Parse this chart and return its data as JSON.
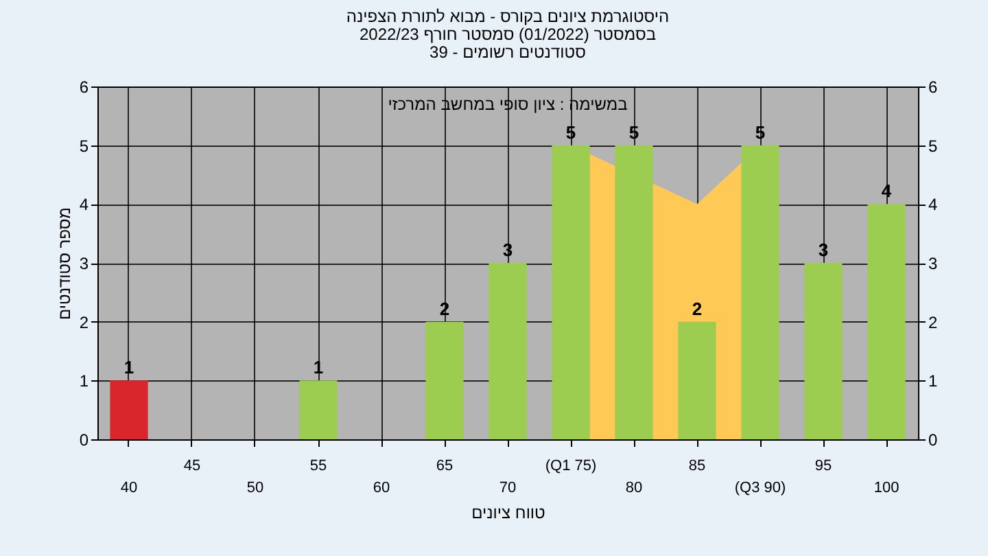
{
  "chart_data": {
    "type": "bar",
    "title": [
      "היסטוגרמת ציונים בקורס - מבוא לתורת הצפינה",
      "בסמסטר  (01/2022)  סמסטר חורף 2022/23",
      "סטודנטים רשומים - 39"
    ],
    "xlabel": "טווח ציונים",
    "ylabel": "מספר סטודנטים",
    "annotations": [
      "במשימה : ציון סופי במחשב המרכזי"
    ],
    "categories": [
      "40",
      "45",
      "50",
      "55",
      "60",
      "65",
      "70",
      "(Q1 75)",
      "80",
      "85",
      "(Q3 90)",
      "95",
      "100"
    ],
    "series": [
      {
        "type": "area",
        "axis": "y2",
        "color": "#ffc955",
        "values": [
          null,
          null,
          null,
          null,
          null,
          null,
          null,
          5,
          null,
          4,
          5,
          null,
          null
        ]
      },
      {
        "colors": [
          "#d9262b",
          "#9ccc50",
          "#9ccc50",
          "#9ccc50",
          "#9ccc50",
          "#9ccc50",
          "#9ccc50",
          "#9ccc50",
          "#9ccc50",
          "#9ccc50",
          "#9ccc50",
          "#9ccc50",
          "#9ccc50"
        ],
        "values": [
          1,
          0,
          0,
          1,
          0,
          2,
          3,
          5,
          5,
          2,
          5,
          3,
          4
        ],
        "value_labels": [
          "1",
          null,
          null,
          "1",
          null,
          "2",
          "3",
          "5",
          "5",
          "2",
          "5",
          "3",
          "4"
        ]
      }
    ],
    "ylim": [
      0,
      6
    ],
    "yticks": [
      0,
      1,
      2,
      3,
      4,
      5,
      6
    ],
    "y2lim": [
      0,
      6
    ],
    "y2ticks": [
      0,
      1,
      2,
      3,
      4,
      5,
      6
    ],
    "grid": true
  }
}
